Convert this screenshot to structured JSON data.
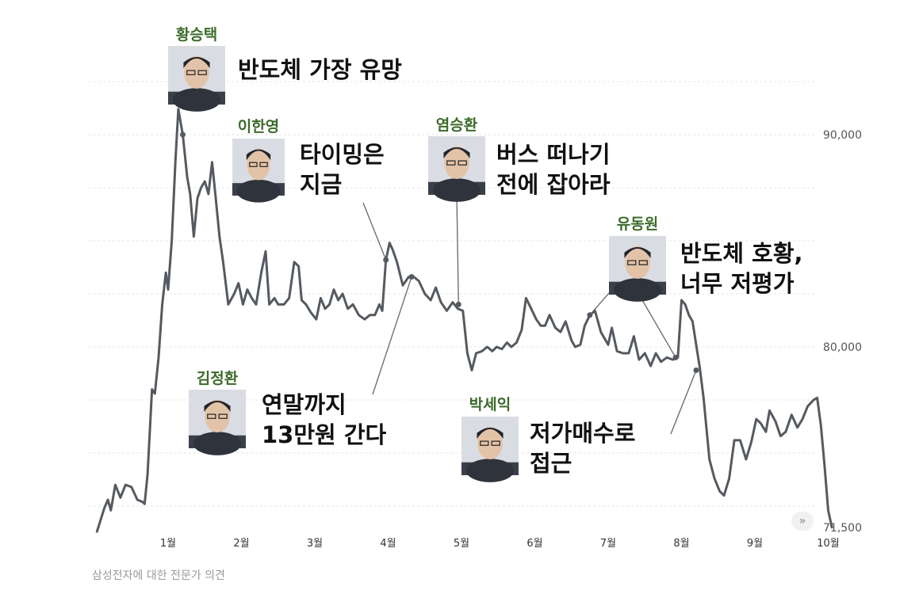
{
  "chart_data": {
    "type": "line",
    "title": "",
    "xlabel": "",
    "ylabel": "",
    "ylim": [
      71000,
      93500
    ],
    "y_ticks": [
      {
        "value": 90000,
        "label": "90,000"
      },
      {
        "value": 80000,
        "label": "80,000"
      },
      {
        "value": 71500,
        "label": "71,500"
      }
    ],
    "x_ticks": [
      {
        "value": 1,
        "label": "1월"
      },
      {
        "value": 2,
        "label": "2월"
      },
      {
        "value": 3,
        "label": "3월"
      },
      {
        "value": 4,
        "label": "4월"
      },
      {
        "value": 5,
        "label": "5월"
      },
      {
        "value": 6,
        "label": "6월"
      },
      {
        "value": 7,
        "label": "7월"
      },
      {
        "value": 8,
        "label": "8월"
      },
      {
        "value": 9,
        "label": "9월"
      },
      {
        "value": 10,
        "label": "10월"
      }
    ],
    "xlim": [
      0.03,
      10.05
    ],
    "grid": true,
    "series": [
      {
        "values": [
          [
            0.03,
            71300
          ],
          [
            0.13,
            72400
          ],
          [
            0.18,
            72800
          ],
          [
            0.22,
            72300
          ],
          [
            0.28,
            73500
          ],
          [
            0.35,
            72900
          ],
          [
            0.42,
            73500
          ],
          [
            0.5,
            73400
          ],
          [
            0.58,
            72800
          ],
          [
            0.65,
            72700
          ],
          [
            0.68,
            72600
          ],
          [
            0.72,
            74000
          ],
          [
            0.78,
            78000
          ],
          [
            0.82,
            77800
          ],
          [
            0.87,
            79500
          ],
          [
            0.92,
            82000
          ],
          [
            0.97,
            83500
          ],
          [
            1.0,
            82700
          ],
          [
            1.05,
            85000
          ],
          [
            1.1,
            88800
          ],
          [
            1.14,
            91200
          ],
          [
            1.2,
            90000
          ],
          [
            1.26,
            88000
          ],
          [
            1.3,
            87200
          ],
          [
            1.35,
            85200
          ],
          [
            1.4,
            87000
          ],
          [
            1.45,
            87500
          ],
          [
            1.5,
            87800
          ],
          [
            1.55,
            87200
          ],
          [
            1.6,
            88700
          ],
          [
            1.65,
            87000
          ],
          [
            1.7,
            85200
          ],
          [
            1.75,
            84000
          ],
          [
            1.82,
            82000
          ],
          [
            1.9,
            82500
          ],
          [
            1.96,
            83000
          ],
          [
            2.02,
            82000
          ],
          [
            2.08,
            82700
          ],
          [
            2.14,
            82300
          ],
          [
            2.2,
            82000
          ],
          [
            2.27,
            83500
          ],
          [
            2.33,
            84500
          ],
          [
            2.38,
            82000
          ],
          [
            2.45,
            82300
          ],
          [
            2.5,
            82000
          ],
          [
            2.58,
            82000
          ],
          [
            2.65,
            82300
          ],
          [
            2.72,
            84000
          ],
          [
            2.78,
            83800
          ],
          [
            2.82,
            82200
          ],
          [
            2.88,
            82000
          ],
          [
            2.95,
            81600
          ],
          [
            3.02,
            81300
          ],
          [
            3.08,
            82300
          ],
          [
            3.14,
            81800
          ],
          [
            3.2,
            82000
          ],
          [
            3.26,
            82700
          ],
          [
            3.32,
            82200
          ],
          [
            3.38,
            82500
          ],
          [
            3.45,
            81800
          ],
          [
            3.52,
            82000
          ],
          [
            3.6,
            81500
          ],
          [
            3.68,
            81300
          ],
          [
            3.75,
            81500
          ],
          [
            3.82,
            81500
          ],
          [
            3.88,
            82000
          ],
          [
            3.92,
            81700
          ],
          [
            3.97,
            84100
          ],
          [
            4.02,
            84900
          ],
          [
            4.06,
            84600
          ],
          [
            4.12,
            84000
          ],
          [
            4.2,
            82900
          ],
          [
            4.28,
            83300
          ],
          [
            4.35,
            83300
          ],
          [
            4.42,
            83100
          ],
          [
            4.5,
            82500
          ],
          [
            4.58,
            82200
          ],
          [
            4.65,
            82800
          ],
          [
            4.72,
            82100
          ],
          [
            4.8,
            81700
          ],
          [
            4.88,
            82100
          ],
          [
            4.95,
            81800
          ],
          [
            5.02,
            81700
          ],
          [
            5.08,
            79700
          ],
          [
            5.14,
            78900
          ],
          [
            5.2,
            79700
          ],
          [
            5.28,
            79800
          ],
          [
            5.35,
            80000
          ],
          [
            5.42,
            79800
          ],
          [
            5.48,
            80000
          ],
          [
            5.55,
            79900
          ],
          [
            5.62,
            80200
          ],
          [
            5.68,
            80000
          ],
          [
            5.75,
            80200
          ],
          [
            5.82,
            80800
          ],
          [
            5.88,
            82300
          ],
          [
            5.95,
            81800
          ],
          [
            6.02,
            81300
          ],
          [
            6.08,
            81000
          ],
          [
            6.14,
            81000
          ],
          [
            6.2,
            81500
          ],
          [
            6.28,
            80900
          ],
          [
            6.35,
            80700
          ],
          [
            6.42,
            81200
          ],
          [
            6.5,
            80300
          ],
          [
            6.55,
            80000
          ],
          [
            6.62,
            80100
          ],
          [
            6.68,
            81000
          ],
          [
            6.75,
            81500
          ],
          [
            6.82,
            81700
          ],
          [
            6.9,
            80700
          ],
          [
            7.0,
            80100
          ],
          [
            7.05,
            80900
          ],
          [
            7.12,
            79800
          ],
          [
            7.2,
            79700
          ],
          [
            7.28,
            79700
          ],
          [
            7.35,
            80500
          ],
          [
            7.42,
            79400
          ],
          [
            7.5,
            79700
          ],
          [
            7.58,
            79100
          ],
          [
            7.65,
            79700
          ],
          [
            7.72,
            79300
          ],
          [
            7.8,
            79500
          ],
          [
            7.88,
            79400
          ],
          [
            7.95,
            79500
          ],
          [
            8.0,
            82200
          ],
          [
            8.05,
            82000
          ],
          [
            8.1,
            81500
          ],
          [
            8.15,
            81200
          ],
          [
            8.2,
            80100
          ],
          [
            8.25,
            79000
          ],
          [
            8.3,
            77600
          ],
          [
            8.38,
            74700
          ],
          [
            8.45,
            73800
          ],
          [
            8.52,
            73200
          ],
          [
            8.58,
            73000
          ],
          [
            8.65,
            73800
          ],
          [
            8.72,
            75600
          ],
          [
            8.8,
            75600
          ],
          [
            8.88,
            74700
          ],
          [
            8.95,
            75500
          ],
          [
            9.02,
            76600
          ],
          [
            9.08,
            76400
          ],
          [
            9.15,
            76000
          ],
          [
            9.2,
            77000
          ],
          [
            9.28,
            76500
          ],
          [
            9.35,
            75800
          ],
          [
            9.42,
            76000
          ],
          [
            9.5,
            76800
          ],
          [
            9.58,
            76200
          ],
          [
            9.65,
            76600
          ],
          [
            9.72,
            77200
          ],
          [
            9.8,
            77500
          ],
          [
            9.85,
            77600
          ],
          [
            9.9,
            76300
          ],
          [
            9.95,
            74400
          ],
          [
            10.0,
            72300
          ],
          [
            10.05,
            71500
          ]
        ]
      }
    ],
    "annotations": [
      {
        "name": "황승택",
        "lines": [
          "반도체 가장 유망"
        ],
        "x": 1.2,
        "y": 90000
      },
      {
        "name": "이한영",
        "lines": [
          "타이밍은",
          "지금"
        ],
        "x": 3.97,
        "y": 84100
      },
      {
        "name": "염승환",
        "lines": [
          "버스 떠나기",
          "전에 잡아라"
        ],
        "x": 4.96,
        "y": 82000
      },
      {
        "name": "유동원",
        "lines": [
          "반도체 호황,",
          "너무 저평가"
        ],
        "x1": 6.75,
        "y1": 81500,
        "x2": 7.92,
        "y2": 79500
      },
      {
        "name": "김정환",
        "lines": [
          "연말까지",
          "13만원 간다"
        ],
        "x": 4.32,
        "y": 83300
      },
      {
        "name": "박세익",
        "lines": [
          "저가매수로",
          "접근"
        ],
        "x": 8.2,
        "y": 78900
      }
    ]
  },
  "caption": "삼성전자에 대한 전문가 의견",
  "scroll_hint": "»"
}
